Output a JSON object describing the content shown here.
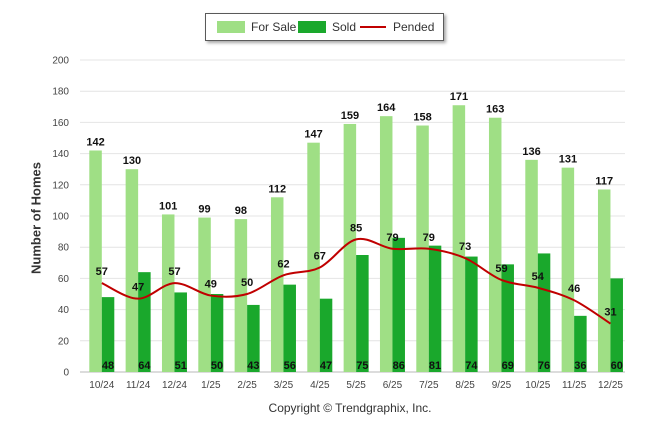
{
  "chart_data": {
    "type": "bar",
    "title": "",
    "xlabel": "",
    "ylabel": "Number of Homes",
    "ylim": [
      0,
      200
    ],
    "yticks": [
      0,
      20,
      40,
      60,
      80,
      100,
      120,
      140,
      160,
      180,
      200
    ],
    "grid": true,
    "legend_placement": "top-center",
    "categories": [
      "10/24",
      "11/24",
      "12/24",
      "1/25",
      "2/25",
      "3/25",
      "4/25",
      "5/25",
      "6/25",
      "7/25",
      "8/25",
      "9/25",
      "10/25",
      "11/25",
      "12/25"
    ],
    "series": [
      {
        "name": "For Sale",
        "type": "bar",
        "color": "#9fdf85",
        "values": [
          142,
          130,
          101,
          99,
          98,
          112,
          147,
          159,
          164,
          158,
          171,
          163,
          136,
          131,
          117
        ]
      },
      {
        "name": "Sold",
        "type": "bar",
        "color": "#1aa82c",
        "values": [
          48,
          64,
          51,
          50,
          43,
          56,
          47,
          75,
          86,
          81,
          74,
          69,
          76,
          36,
          60
        ]
      },
      {
        "name": "Pended",
        "type": "line",
        "color": "#c00000",
        "values": [
          57,
          47,
          57,
          49,
          50,
          62,
          67,
          85,
          79,
          79,
          73,
          59,
          54,
          46,
          31
        ]
      }
    ]
  },
  "footer": {
    "copyright": "Copyright © Trendgraphix, Inc."
  }
}
